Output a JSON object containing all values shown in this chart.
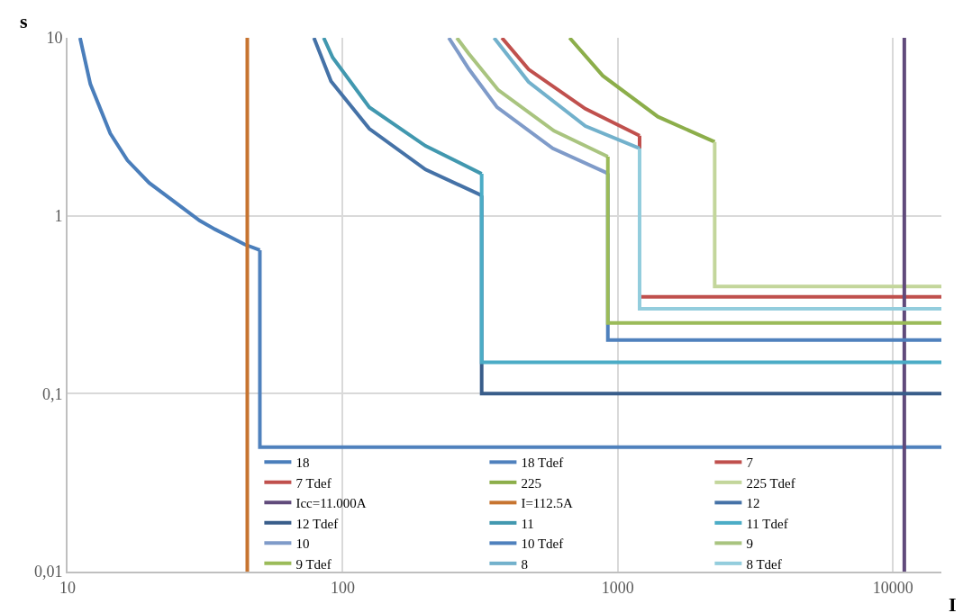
{
  "chart_data": {
    "type": "line",
    "xlabel": "I",
    "ylabel": "s",
    "log": "xy",
    "grid": true,
    "legend": "bottom",
    "line_style": "solid",
    "marker": "none",
    "xlim": [
      10,
      15000
    ],
    "xticks": [
      10,
      100,
      1000,
      10000
    ],
    "ylim": [
      0.01,
      10
    ],
    "yticks": [
      {
        "value": 0.01,
        "label": "0,01"
      },
      {
        "value": 0.1,
        "label": "0,1"
      },
      1,
      10
    ],
    "series": [
      {
        "name": "18",
        "color": "#4a7ebb",
        "x": [
          11.1,
          12.1,
          14.3,
          16.5,
          19.8,
          30.2,
          34.3,
          44,
          50
        ],
        "values": [
          10,
          5.5,
          2.9,
          2.05,
          1.53,
          0.94,
          0.84,
          0.69,
          0.64
        ]
      },
      {
        "name": "18 Tdef",
        "color": "#4f81bd",
        "x": [
          50,
          50,
          15000
        ],
        "values": [
          0.64,
          0.05,
          0.05
        ]
      },
      {
        "name": "7",
        "color": "#c0504d",
        "x": [
          379,
          474,
          762,
          1200
        ],
        "values": [
          10,
          6.65,
          3.99,
          2.82
        ]
      },
      {
        "name": "7 Tdef",
        "color": "#c0504d",
        "x": [
          1200,
          1200,
          15000
        ],
        "values": [
          2.82,
          0.35,
          0.35
        ]
      },
      {
        "name": "225",
        "color": "#8cae4a",
        "x": [
          668,
          882,
          1399,
          2250
        ],
        "values": [
          10,
          6.12,
          3.6,
          2.6
        ]
      },
      {
        "name": "225 Tdef",
        "color": "#c3d69b",
        "x": [
          2250,
          2250,
          15000
        ],
        "values": [
          2.6,
          0.4,
          0.4
        ]
      },
      {
        "name": "Icc=11.000A",
        "color": "#604a7b",
        "x": [
          11000,
          11000
        ],
        "values": [
          0.01,
          10
        ]
      },
      {
        "name": "I=112.5A",
        "color": "#c77430",
        "x": [
          45,
          45
        ],
        "values": [
          0.01,
          10
        ]
      },
      {
        "name": "12",
        "color": "#4572a7",
        "x": [
          78.6,
          90.7,
          125,
          200,
          320
        ],
        "values": [
          10,
          5.7,
          3.08,
          1.82,
          1.3
        ]
      },
      {
        "name": "12 Tdef",
        "color": "#385d8a",
        "x": [
          320,
          320,
          15000
        ],
        "values": [
          1.3,
          0.1,
          0.1
        ]
      },
      {
        "name": "11",
        "color": "#4198af",
        "x": [
          85.3,
          92,
          125,
          200,
          320
        ],
        "values": [
          10,
          7.74,
          4.07,
          2.47,
          1.72
        ]
      },
      {
        "name": "11 Tdef",
        "color": "#4bacc6",
        "x": [
          320,
          320,
          15000
        ],
        "values": [
          1.72,
          0.15,
          0.15
        ]
      },
      {
        "name": "10",
        "color": "#7f9bc9",
        "x": [
          243,
          288,
          364,
          580,
          920
        ],
        "values": [
          10,
          6.65,
          4.07,
          2.39,
          1.73
        ]
      },
      {
        "name": "10 Tdef",
        "color": "#4f81bd",
        "x": [
          920,
          920,
          15000
        ],
        "values": [
          1.73,
          0.2,
          0.2
        ]
      },
      {
        "name": "9",
        "color": "#a9c47f",
        "x": [
          260,
          287,
          368,
          586,
          920
        ],
        "values": [
          10,
          8.16,
          5.08,
          3.0,
          2.15
        ]
      },
      {
        "name": "9 Tdef",
        "color": "#9bbb59",
        "x": [
          920,
          920,
          15000
        ],
        "values": [
          2.15,
          0.25,
          0.25
        ]
      },
      {
        "name": "8",
        "color": "#72b1cc",
        "x": [
          355,
          474,
          762,
          1200
        ],
        "values": [
          10,
          5.65,
          3.19,
          2.39
        ]
      },
      {
        "name": "8 Tdef",
        "color": "#93cddd",
        "x": [
          1200,
          1200,
          15000
        ],
        "values": [
          2.39,
          0.3,
          0.3
        ]
      }
    ]
  }
}
